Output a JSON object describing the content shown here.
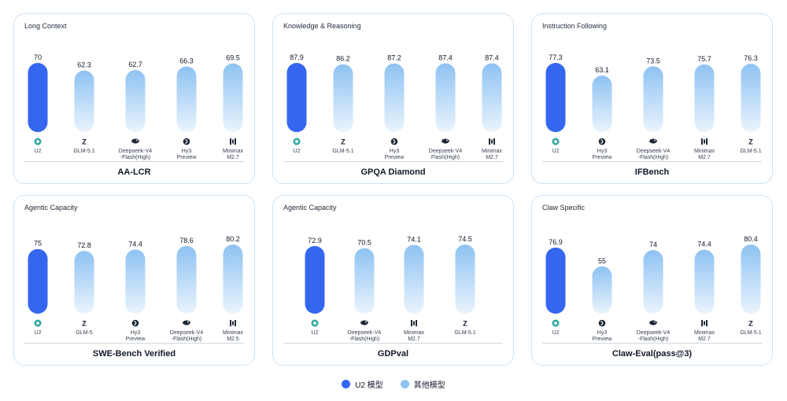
{
  "legend": {
    "primary": {
      "label": "U2 模型",
      "color": "#3466f0"
    },
    "secondary": {
      "label": "其他模型",
      "color": "#8fc3f3"
    }
  },
  "chart_data": [
    {
      "type": "bar",
      "category": "Long Context",
      "benchmark": "AA-LCR",
      "ylim": [
        0,
        70
      ],
      "categories": [
        [
          "U2"
        ],
        [
          "GLM-5.1"
        ],
        [
          "Deepseek-V4",
          "-Flash(High)"
        ],
        [
          "Hy3",
          "Preview"
        ],
        [
          "Minimax",
          "M2.7"
        ]
      ],
      "icons": [
        "brand-u2",
        "brand-glm",
        "brand-deepseek",
        "brand-hy",
        "brand-minimax"
      ],
      "values": [
        70,
        62.3,
        62.7,
        66.3,
        69.5
      ],
      "highlight": [
        0
      ]
    },
    {
      "type": "bar",
      "category": "Knowledge & Reasoning",
      "benchmark": "GPQA Diamond",
      "ylim": [
        0,
        87.9
      ],
      "categories": [
        [
          "U2"
        ],
        [
          "GLM-5.1"
        ],
        [
          "Hy3",
          "Preview"
        ],
        [
          "Deepseek-V4",
          "Flash(High)"
        ],
        [
          "Minimax",
          "M2.7"
        ]
      ],
      "icons": [
        "brand-u2",
        "brand-glm",
        "brand-hy",
        "brand-deepseek",
        "brand-minimax"
      ],
      "values": [
        87.9,
        86.2,
        87.2,
        87.4,
        87.4
      ],
      "highlight": [
        0
      ]
    },
    {
      "type": "bar",
      "category": "Instruction Following",
      "benchmark": "IFBench",
      "ylim": [
        0,
        77.3
      ],
      "categories": [
        [
          "U2"
        ],
        [
          "Hy3",
          "Preview"
        ],
        [
          "Deepseek-V4",
          "-Flash(High)"
        ],
        [
          "Minimax",
          "M2.7"
        ],
        [
          "GLM-5.1"
        ]
      ],
      "icons": [
        "brand-u2",
        "brand-hy",
        "brand-deepseek",
        "brand-minimax",
        "brand-glm"
      ],
      "values": [
        77.3,
        63.1,
        73.5,
        75.7,
        76.3
      ],
      "highlight": [
        0
      ]
    },
    {
      "type": "bar",
      "category": "Agentic Capacity",
      "benchmark": "SWE-Bench Verified",
      "ylim": [
        0,
        80.2
      ],
      "categories": [
        [
          "U2"
        ],
        [
          "GLM-5"
        ],
        [
          "Hy3",
          "Preview"
        ],
        [
          "Deepseek-V4",
          "-Flash(High)"
        ],
        [
          "Minimax",
          "M2.5"
        ]
      ],
      "icons": [
        "brand-u2",
        "brand-glm",
        "brand-hy",
        "brand-deepseek",
        "brand-minimax"
      ],
      "values": [
        75,
        72.8,
        74.4,
        78.6,
        80.2
      ],
      "highlight": [
        0
      ]
    },
    {
      "type": "bar",
      "category": "Agentic Capacity",
      "benchmark": "GDPval",
      "ylim": [
        0,
        74.5
      ],
      "categories": [
        [
          "U2"
        ],
        [
          "Deepseek-V4",
          "-Flash(High)"
        ],
        [
          "Minimax",
          "M2.7"
        ],
        [
          "GLM-5.1"
        ]
      ],
      "icons": [
        "brand-u2",
        "brand-deepseek",
        "brand-minimax",
        "brand-glm"
      ],
      "values": [
        72.9,
        70.5,
        74.1,
        74.5
      ],
      "highlight": [
        0
      ]
    },
    {
      "type": "bar",
      "category": "Claw Specific",
      "benchmark": "Claw-Eval(pass@3)",
      "ylim": [
        0,
        80.4
      ],
      "categories": [
        [
          "U2"
        ],
        [
          "Hy3",
          "Preview"
        ],
        [
          "Deepseek-V4",
          "-Flash(High)"
        ],
        [
          "Minimax",
          "M2.7"
        ],
        [
          "GLM-5.1"
        ]
      ],
      "icons": [
        "brand-u2",
        "brand-hy",
        "brand-deepseek",
        "brand-minimax",
        "brand-glm"
      ],
      "values": [
        76.9,
        55,
        74,
        74.4,
        80.4
      ],
      "highlight": [
        0
      ]
    }
  ]
}
